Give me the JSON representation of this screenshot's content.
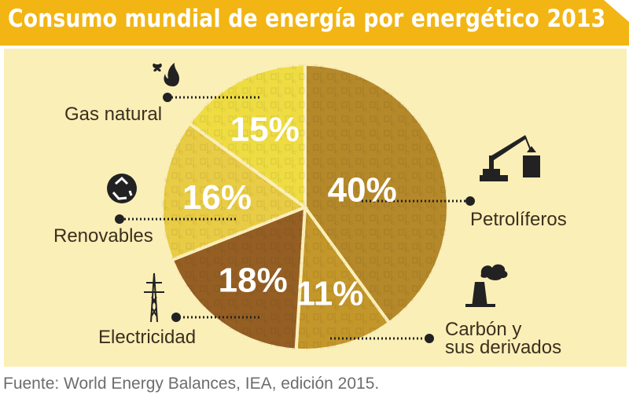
{
  "title": "Consumo mundial de energía por energético 2013",
  "source": "Fuente: World Energy Balances, IEA, edición 2015.",
  "colors": {
    "title_bg": "#f2b514",
    "panel_bg": "#fbefb8",
    "Petrolíferos": "#b5892a",
    "Carbón y sus derivados": "#c4972a",
    "Electricidad": "#955f24",
    "Renovables": "#e9cc45",
    "Gas natural": "#eedc42"
  },
  "icons": {
    "Gas natural": "butterfly-flame-icon",
    "Renovables": "recycle-icon",
    "Electricidad": "power-tower-icon",
    "Petrolíferos": "oil-crane-icon",
    "Carbón y sus derivados": "factory-smokestack-icon"
  },
  "chart_data": {
    "type": "pie",
    "title": "Consumo mundial de energía por energético 2013",
    "unit": "%",
    "slices": [
      {
        "label": "Petrolíferos",
        "value": 40,
        "value_label": "40%"
      },
      {
        "label": "Carbón y sus derivados",
        "value": 11,
        "value_label": "11%"
      },
      {
        "label": "Electricidad",
        "value": 18,
        "value_label": "18%"
      },
      {
        "label": "Renovables",
        "value": 16,
        "value_label": "16%"
      },
      {
        "label": "Gas natural",
        "value": 15,
        "value_label": "15%"
      }
    ]
  }
}
